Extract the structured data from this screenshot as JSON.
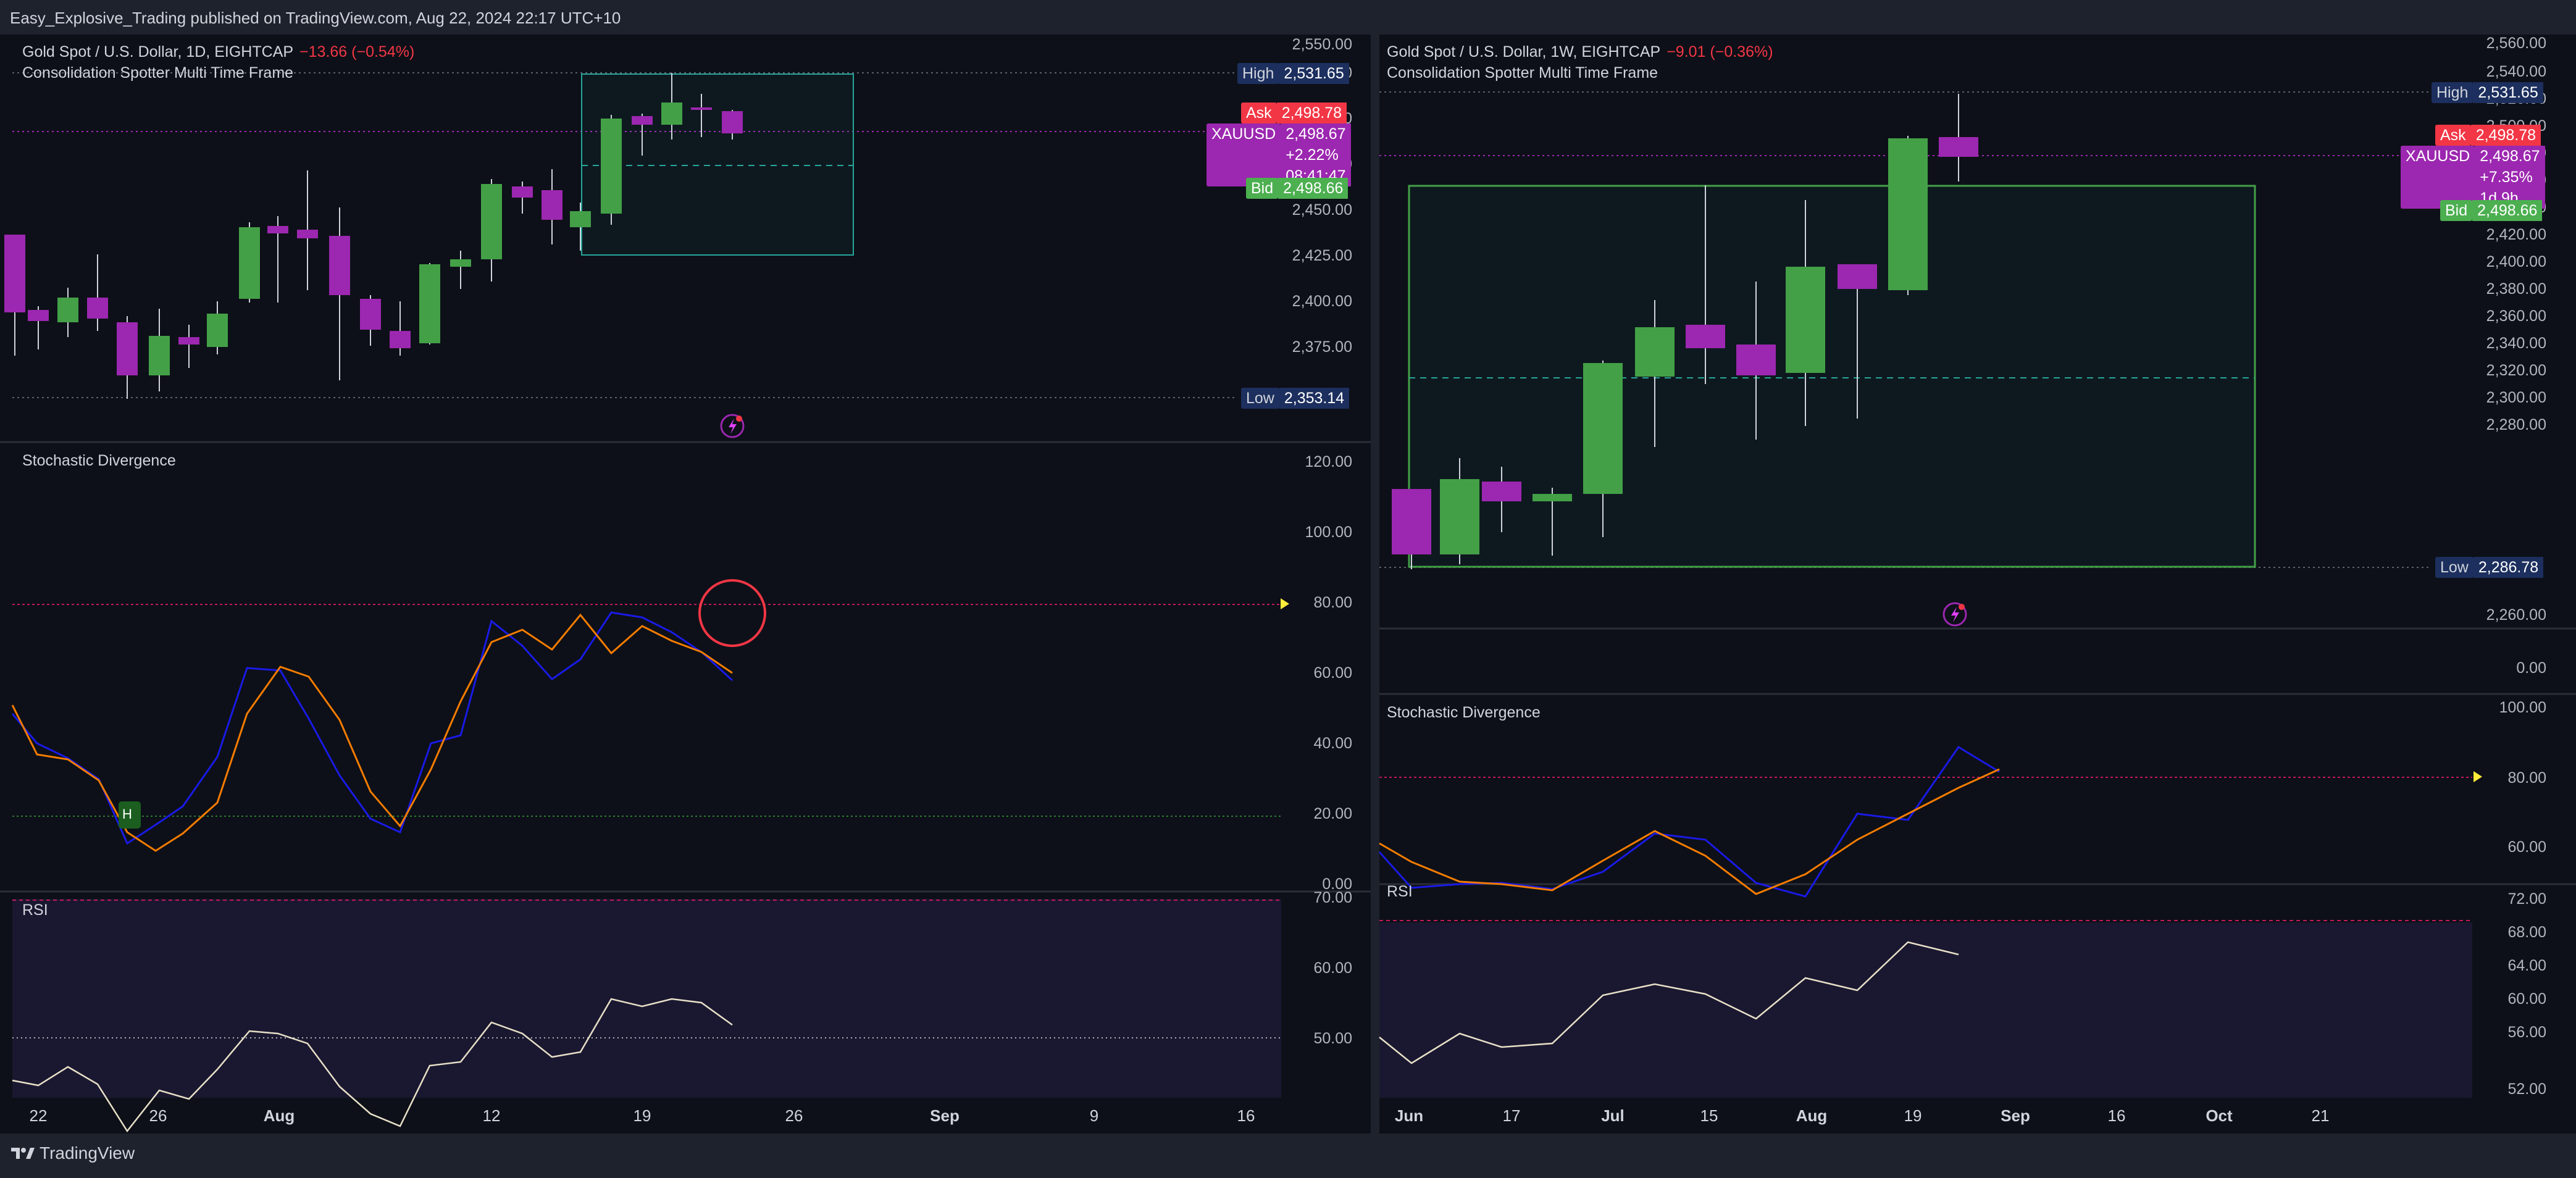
{
  "header": {
    "publisher_line": "Easy_Explosive_Trading published on TradingView.com, Aug 22, 2024 22:17 UTC+10"
  },
  "footer": {
    "brand": "TradingView"
  },
  "colors": {
    "bull": "#43a047",
    "bear": "#9c27b0",
    "stoch_k": "#1a1ae6",
    "stoch_d": "#f57c00",
    "rsi": "#e8e0c8",
    "box": "#26a69a"
  },
  "left": {
    "legend": {
      "symbol": "Gold Spot / U.S. Dollar, 1D, EIGHTCAP",
      "change": "−13.66 (−0.54%)",
      "indicator": "Consolidation Spotter Multi Time Frame"
    },
    "price_axis": [
      "2,550.00",
      "2,525.00",
      "2,500.00",
      "2,475.00",
      "2,450.00",
      "2,425.00",
      "2,400.00",
      "2,375.00"
    ],
    "tags": {
      "high_label": "High",
      "high_value": "2,531.65",
      "ask_label": "Ask",
      "ask_value": "2,498.78",
      "symbol_label": "XAUUSD",
      "symbol_value": "2,498.67",
      "symbol_change": "+2.22%",
      "symbol_countdown": "08:41:47",
      "bid_label": "Bid",
      "bid_value": "2,498.66",
      "low_label": "Low",
      "low_value": "2,353.14"
    },
    "stoch": {
      "label": "Stochastic Divergence",
      "axis": [
        "120.00",
        "100.00",
        "80.00",
        "60.00",
        "40.00",
        "20.00",
        "0.00"
      ],
      "marker": "H"
    },
    "rsi": {
      "label": "RSI",
      "axis": [
        "70.00",
        "60.00",
        "50.00"
      ]
    },
    "time_axis": [
      "22",
      "26",
      "Aug",
      "12",
      "19",
      "26",
      "Sep",
      "9",
      "16"
    ]
  },
  "right": {
    "legend": {
      "symbol": "Gold Spot / U.S. Dollar, 1W, EIGHTCAP",
      "change": "−9.01 (−0.36%)",
      "indicator": "Consolidation Spotter Multi Time Frame"
    },
    "price_axis": [
      "2,560.00",
      "2,540.00",
      "2,520.00",
      "2,500.00",
      "2,480.00",
      "2,460.00",
      "2,440.00",
      "2,420.00",
      "2,400.00",
      "2,380.00",
      "2,360.00",
      "2,340.00",
      "2,320.00",
      "2,300.00",
      "2,280.00",
      "2,260.00"
    ],
    "tags": {
      "high_label": "High",
      "high_value": "2,531.65",
      "ask_label": "Ask",
      "ask_value": "2,498.78",
      "symbol_label": "XAUUSD",
      "symbol_value": "2,498.67",
      "symbol_change": "+7.35%",
      "symbol_countdown": "1d 9h",
      "bid_label": "Bid",
      "bid_value": "2,498.66",
      "low_label": "Low",
      "low_value": "2,286.78"
    },
    "extra_axis": "0.00",
    "stoch": {
      "label": "Stochastic Divergence",
      "axis": [
        "100.00",
        "80.00",
        "60.00"
      ]
    },
    "rsi": {
      "label": "RSI",
      "axis": [
        "72.00",
        "68.00",
        "64.00",
        "60.00",
        "56.00",
        "52.00"
      ]
    },
    "time_axis": [
      "Jun",
      "17",
      "Jul",
      "15",
      "Aug",
      "19",
      "Sep",
      "16",
      "Oct",
      "21"
    ]
  }
}
